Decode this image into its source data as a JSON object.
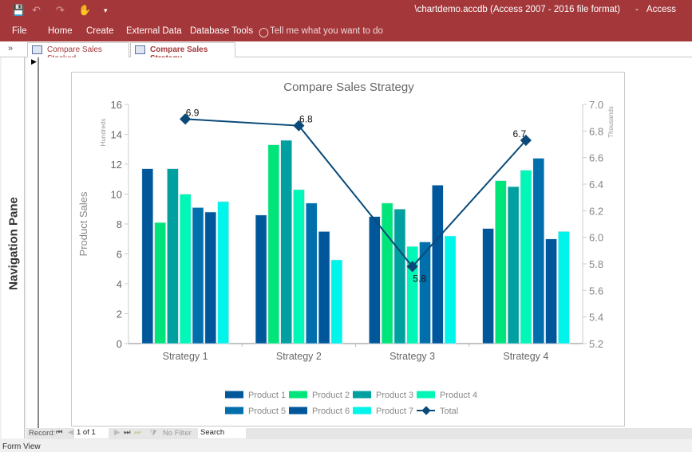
{
  "window": {
    "title": "\\chartdemo.accdb (Access 2007 - 2016 file format)",
    "app": "Access",
    "separator": "-"
  },
  "quick_access": [
    "save-icon",
    "undo-icon",
    "redo-icon",
    "touch-mode-icon",
    "customize-icon"
  ],
  "menu": [
    "File",
    "Home",
    "Create",
    "External Data",
    "Database Tools"
  ],
  "tell_me": "Tell me what you want to do",
  "tabs": [
    {
      "label": "Compare Sales Stacked",
      "active": false
    },
    {
      "label": "Compare Sales Strategy",
      "active": true
    }
  ],
  "nav_pane": {
    "label": "Navigation Pane",
    "toggle": "»"
  },
  "record_nav": {
    "label": "Record:",
    "current": "1 of 1",
    "filter": "No Filter",
    "search": "Search"
  },
  "status": "Form View",
  "colors": {
    "ribbon": "#a4373a",
    "product_1": "#00589a",
    "product_2": "#00e57a",
    "product_3": "#00a0a0",
    "product_4": "#00f7b7",
    "product_5": "#006fac",
    "product_6": "#00569a",
    "product_7": "#00f5ea",
    "total": "#0a4a78"
  },
  "chart_data": {
    "type": "bar",
    "title": "Compare Sales Strategy",
    "ylabel": "Product Sales",
    "y_unit": "Hundreds",
    "y2_unit": "Thousands",
    "ylim": [
      0,
      16
    ],
    "y2lim": [
      5.2,
      7.0
    ],
    "yticks": [
      "0",
      "2",
      "4",
      "6",
      "8",
      "10",
      "12",
      "14",
      "16"
    ],
    "y2ticks": [
      "5.2",
      "5.4",
      "5.6",
      "5.8",
      "6.0",
      "6.2",
      "6.4",
      "6.6",
      "6.8",
      "7.0"
    ],
    "categories": [
      "Strategy 1",
      "Strategy 2",
      "Strategy 3",
      "Strategy 4"
    ],
    "legend_position": "bottom",
    "grid": false,
    "series": [
      {
        "name": "Product 1",
        "values": [
          11.7,
          8.6,
          8.5,
          7.7
        ]
      },
      {
        "name": "Product 2",
        "values": [
          8.1,
          13.3,
          9.4,
          10.9
        ]
      },
      {
        "name": "Product 3",
        "values": [
          11.7,
          13.6,
          9.0,
          10.5
        ]
      },
      {
        "name": "Product 4",
        "values": [
          10.0,
          10.3,
          6.5,
          11.6
        ]
      },
      {
        "name": "Product 5",
        "values": [
          9.1,
          9.4,
          6.8,
          12.4
        ]
      },
      {
        "name": "Product 6",
        "values": [
          8.8,
          7.5,
          10.6,
          7.0
        ]
      },
      {
        "name": "Product 7",
        "values": [
          9.5,
          5.6,
          7.2,
          7.5
        ]
      }
    ],
    "line_series": {
      "name": "Total",
      "type": "line",
      "axis": "secondary",
      "values": [
        6.89,
        6.84,
        5.78,
        6.73
      ],
      "labels": [
        "6.9",
        "6.8",
        "5.8",
        "6.7"
      ]
    }
  }
}
